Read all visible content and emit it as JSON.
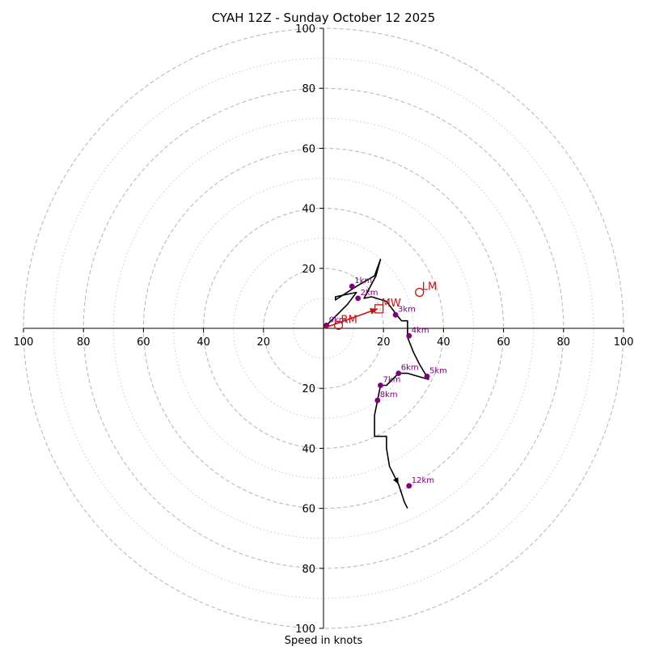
{
  "chart_data": {
    "type": "hodograph",
    "title": "CYAH 12Z - Sunday October 12 2025",
    "xlabel": "Speed in knots",
    "range": [
      -100,
      100
    ],
    "ring_major": [
      20,
      40,
      60,
      80,
      100
    ],
    "ring_minor": [
      10,
      30,
      50,
      70,
      90
    ],
    "axis_ticks": [
      {
        "label": "100",
        "value": -100
      },
      {
        "label": "80",
        "value": -80
      },
      {
        "label": "60",
        "value": -60
      },
      {
        "label": "40",
        "value": -40
      },
      {
        "label": "20",
        "value": -20
      },
      {
        "label": "20",
        "value": 20
      },
      {
        "label": "40",
        "value": 40
      },
      {
        "label": "60",
        "value": 60
      },
      {
        "label": "80",
        "value": 80
      },
      {
        "label": "100",
        "value": 100
      }
    ],
    "trace": [
      [
        0,
        0
      ],
      [
        4,
        4
      ],
      [
        8,
        8
      ],
      [
        11,
        12
      ],
      [
        4,
        10.5
      ],
      [
        4,
        9.5
      ],
      [
        11,
        14
      ],
      [
        17,
        17.5
      ],
      [
        19,
        23
      ],
      [
        17.5,
        17.5
      ],
      [
        13.5,
        10
      ],
      [
        16,
        10.5
      ],
      [
        21,
        9
      ],
      [
        24,
        5
      ],
      [
        26,
        2.5
      ],
      [
        28,
        2.5
      ],
      [
        28,
        -3
      ],
      [
        30,
        -8
      ],
      [
        32,
        -12
      ],
      [
        35,
        -17
      ],
      [
        28,
        -15
      ],
      [
        25,
        -15
      ],
      [
        23,
        -17
      ],
      [
        21,
        -19
      ],
      [
        19,
        -19
      ],
      [
        18,
        -24
      ],
      [
        17,
        -29
      ],
      [
        17,
        -36
      ],
      [
        21,
        -36
      ],
      [
        21,
        -40
      ],
      [
        22,
        -46
      ],
      [
        25,
        -52
      ],
      [
        27,
        -58
      ],
      [
        28,
        -60
      ]
    ],
    "height_markers": [
      {
        "label": "0km",
        "u": 1,
        "v": 1
      },
      {
        "label": "1km",
        "u": 9.5,
        "v": 14
      },
      {
        "label": "2km",
        "u": 11.5,
        "v": 10
      },
      {
        "label": "3km",
        "u": 24,
        "v": 4.5
      },
      {
        "label": "4km",
        "u": 28.5,
        "v": -2.5
      },
      {
        "label": "5km",
        "u": 34.5,
        "v": -16
      },
      {
        "label": "6km",
        "u": 25,
        "v": -15
      },
      {
        "label": "7km",
        "u": 19,
        "v": -19
      },
      {
        "label": "8km",
        "u": 18,
        "v": -24
      },
      {
        "label": "12km",
        "u": 28.5,
        "v": -52.5
      }
    ],
    "storm_motion": [
      {
        "label": "LM",
        "u": 32,
        "v": 12,
        "marker": "circle"
      },
      {
        "label": "RM",
        "u": 5,
        "v": 1,
        "marker": "circle"
      },
      {
        "label": "MW",
        "u": 18.5,
        "v": 6.5,
        "marker": "square"
      }
    ],
    "shear_arrow": {
      "from": [
        0,
        0
      ],
      "to": [
        18,
        6.5
      ]
    },
    "colors": {
      "trace": "#000000",
      "markers": "#800080",
      "storm_motion": "#cc1111",
      "ring_major": "#bbbbbb",
      "ring_minor": "#cccccc"
    }
  }
}
